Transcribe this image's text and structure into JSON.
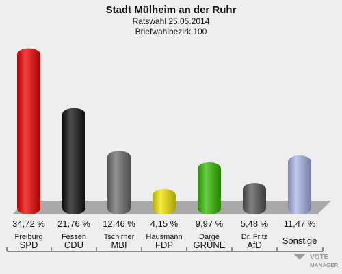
{
  "chart_data": {
    "type": "bar",
    "title": "Stadt Mülheim an der Ruhr",
    "subtitle1": "Ratswahl 25.05.2014",
    "subtitle2": "Briefwahlbezirk 100",
    "ylim": [
      0,
      36
    ],
    "bars": [
      {
        "candidate": "Freiburg",
        "party": "SPD",
        "value": 34.72,
        "label": "34,72 %",
        "color": "#ee0000"
      },
      {
        "candidate": "Fessen",
        "party": "CDU",
        "value": 21.76,
        "label": "21,76 %",
        "color": "#111111"
      },
      {
        "candidate": "Tschirner",
        "party": "MBI",
        "value": 12.46,
        "label": "12,46 %",
        "color": "#6e6e6e"
      },
      {
        "candidate": "Hausmann",
        "party": "FDP",
        "value": 4.15,
        "label": "4,15 %",
        "color": "#f2e600"
      },
      {
        "candidate": "Darge",
        "party": "GRÜNE",
        "value": 9.97,
        "label": "9,97 %",
        "color": "#33bb00"
      },
      {
        "candidate": "Dr. Fritz",
        "party": "AfD",
        "value": 5.48,
        "label": "5,48 %",
        "color": "#555555"
      },
      {
        "candidate": "",
        "party": "Sonstige",
        "value": 11.47,
        "label": "11,47 %",
        "color": "#a8b4e6"
      }
    ]
  },
  "watermark": {
    "line1": "VOTE",
    "line2": "MANAGER"
  }
}
